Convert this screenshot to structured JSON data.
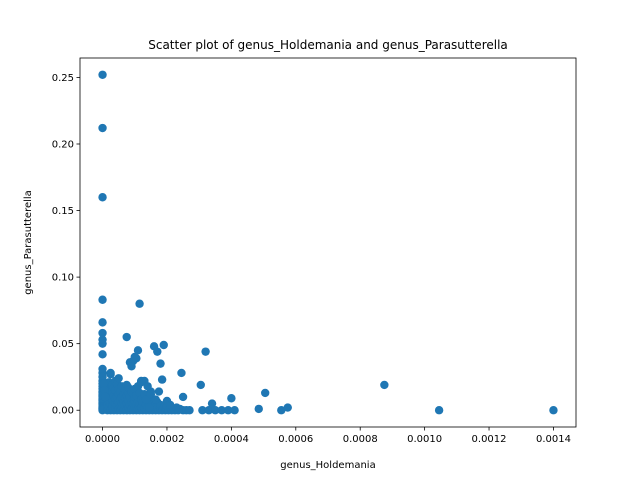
{
  "chart_data": {
    "type": "scatter",
    "title": "Scatter plot of genus_Holdemania and genus_Parasutterella",
    "xlabel": "genus_Holdemania",
    "ylabel": "genus_Parasutterella",
    "xlim": [
      -7e-05,
      0.00147
    ],
    "ylim": [
      -0.0126,
      0.2646
    ],
    "xticks": [
      0.0,
      0.0002,
      0.0004,
      0.0006,
      0.0008,
      0.001,
      0.0012,
      0.0014
    ],
    "xtick_labels": [
      "0.0000",
      "0.0002",
      "0.0004",
      "0.0006",
      "0.0008",
      "0.0010",
      "0.0012",
      "0.0014"
    ],
    "yticks": [
      0.0,
      0.05,
      0.1,
      0.15,
      0.2,
      0.25
    ],
    "ytick_labels": [
      "0.00",
      "0.05",
      "0.10",
      "0.15",
      "0.20",
      "0.25"
    ],
    "grid": false,
    "marker_color": "#1f77b4",
    "series": [
      {
        "x": [
          0,
          0,
          0,
          0,
          0,
          0,
          0,
          0,
          0,
          0,
          0,
          0,
          0,
          0,
          0,
          0,
          0,
          0,
          0,
          0,
          0,
          0,
          0,
          0,
          0,
          0,
          0,
          0,
          0,
          0,
          0,
          0,
          0,
          1.5e-05,
          1.5e-05,
          1.5e-05,
          1.5e-05,
          1.5e-05,
          2e-05,
          2e-05,
          2e-05,
          2e-05,
          2e-05,
          2.5e-05,
          2.5e-05,
          2.5e-05,
          2.5e-05,
          3e-05,
          3e-05,
          3e-05,
          3e-05,
          3e-05,
          3.5e-05,
          3.5e-05,
          3.5e-05,
          3.5e-05,
          4e-05,
          4e-05,
          4e-05,
          4e-05,
          4e-05,
          4.5e-05,
          4.5e-05,
          4.5e-05,
          4.5e-05,
          5e-05,
          5e-05,
          5e-05,
          5e-05,
          5e-05,
          5.5e-05,
          5.5e-05,
          5.5e-05,
          6e-05,
          6e-05,
          6e-05,
          6e-05,
          6.5e-05,
          6.5e-05,
          6.5e-05,
          7e-05,
          7e-05,
          7e-05,
          7e-05,
          7.5e-05,
          7.5e-05,
          7.5e-05,
          7.5e-05,
          8e-05,
          8e-05,
          8e-05,
          8e-05,
          8.5e-05,
          8.5e-05,
          8.5e-05,
          9e-05,
          9e-05,
          9e-05,
          9.5e-05,
          9.5e-05,
          9.5e-05,
          0.0001,
          0.0001,
          0.0001,
          0.0001,
          0.000105,
          0.000105,
          0.000105,
          0.00011,
          0.00011,
          0.00011,
          0.000115,
          0.000115,
          0.000115,
          0.00012,
          0.00012,
          0.00012,
          0.000125,
          0.000125,
          0.00013,
          0.00013,
          0.000135,
          0.000135,
          0.00014,
          0.00014,
          0.000145,
          0.000145,
          0.00015,
          0.00015,
          0.000155,
          0.000155,
          0.00016,
          0.00016,
          0.000165,
          0.000165,
          0.00017,
          0.00017,
          0.000175,
          0.00018,
          0.00018,
          0.000185,
          0.00019,
          0.000195,
          0.0002,
          0.0002,
          0.000205,
          0.00021,
          0.000215,
          0.00022,
          0.000225,
          0.00023,
          0.000235,
          0.00024,
          0.00025,
          0.00026,
          0.00027,
          0.00031,
          0.00033,
          0.00035,
          0.00037,
          0.00039,
          0.00041,
          4e-06,
          7e-06,
          8e-06,
          2.5e-05,
          7.5e-05,
          9.5e-05,
          0.000105,
          0.00013,
          0.000135,
          0.00014,
          0.000145,
          0.00015,
          0.00016,
          0.000165,
          0.00017,
          0.000175,
          0.000185,
          0.0002,
          0.00021,
          0.000245,
          0.00025,
          0.000305,
          0.00032,
          0.00034,
          0.0004,
          0.000485,
          0.000505,
          0.000555,
          0.000575,
          0.000875,
          0.001045,
          0.0014,
          0.00018,
          0.00019,
          8.5e-05,
          9e-05,
          0.000115,
          0.0001,
          0.00011,
          0.00012
        ],
        "y": [
          0.252,
          0.212,
          0.16,
          0.083,
          0.066,
          0.058,
          0.053,
          0.05,
          0.042,
          0.031,
          0.028,
          0.025,
          0.022,
          0.02,
          0.018,
          0.016,
          0.014,
          0.012,
          0.01,
          0.008,
          0.007,
          0.006,
          0.005,
          0.004,
          0.003,
          0.002,
          0.0015,
          0.001,
          0.0005,
          0.0,
          0.009,
          0.011,
          0.013,
          0.0,
          0.004,
          0.008,
          0.012,
          0.018,
          0.002,
          0.006,
          0.01,
          0.015,
          0.021,
          0.0,
          0.005,
          0.012,
          0.027,
          0.001,
          0.004,
          0.008,
          0.014,
          0.019,
          0.0,
          0.006,
          0.011,
          0.017,
          0.002,
          0.005,
          0.009,
          0.015,
          0.022,
          0.0,
          0.004,
          0.01,
          0.02,
          0.001,
          0.006,
          0.012,
          0.016,
          0.024,
          0.0,
          0.008,
          0.014,
          0.002,
          0.005,
          0.01,
          0.018,
          0.0,
          0.006,
          0.012,
          0.001,
          0.004,
          0.009,
          0.015,
          0.0,
          0.005,
          0.011,
          0.019,
          0.002,
          0.007,
          0.013,
          0.017,
          0.0,
          0.004,
          0.01,
          0.001,
          0.006,
          0.014,
          0.0,
          0.005,
          0.012,
          0.002,
          0.007,
          0.01,
          0.016,
          0.0,
          0.004,
          0.011,
          0.001,
          0.006,
          0.018,
          0.0,
          0.005,
          0.013,
          0.002,
          0.008,
          0.022,
          0.0,
          0.006,
          0.001,
          0.012,
          0.0,
          0.004,
          0.002,
          0.009,
          0.0,
          0.006,
          0.001,
          0.014,
          0.0,
          0.005,
          0.002,
          0.008,
          0.0,
          0.004,
          0.001,
          0.006,
          0.0,
          0.001,
          0.004,
          0.0,
          0.002,
          0.0,
          0.001,
          0.003,
          0.0,
          0.002,
          0.0,
          0.001,
          0.0,
          0.002,
          0.0,
          0.001,
          0.0,
          0.0,
          0.0,
          0.0,
          0.0,
          0.0,
          0.0,
          0.0,
          0.0,
          0.02,
          0.015,
          0.01,
          0.028,
          0.055,
          0.037,
          0.039,
          0.022,
          0.008,
          0.018,
          0.002,
          0.012,
          0.048,
          0.008,
          0.044,
          0.014,
          0.023,
          0.007,
          0.004,
          0.028,
          0.01,
          0.019,
          0.044,
          0.005,
          0.009,
          0.001,
          0.013,
          0.0,
          0.002,
          0.019,
          0.0,
          0.0,
          0.035,
          0.049,
          0.036,
          0.033,
          0.08,
          0.04,
          0.045,
          0.021
        ]
      }
    ]
  }
}
